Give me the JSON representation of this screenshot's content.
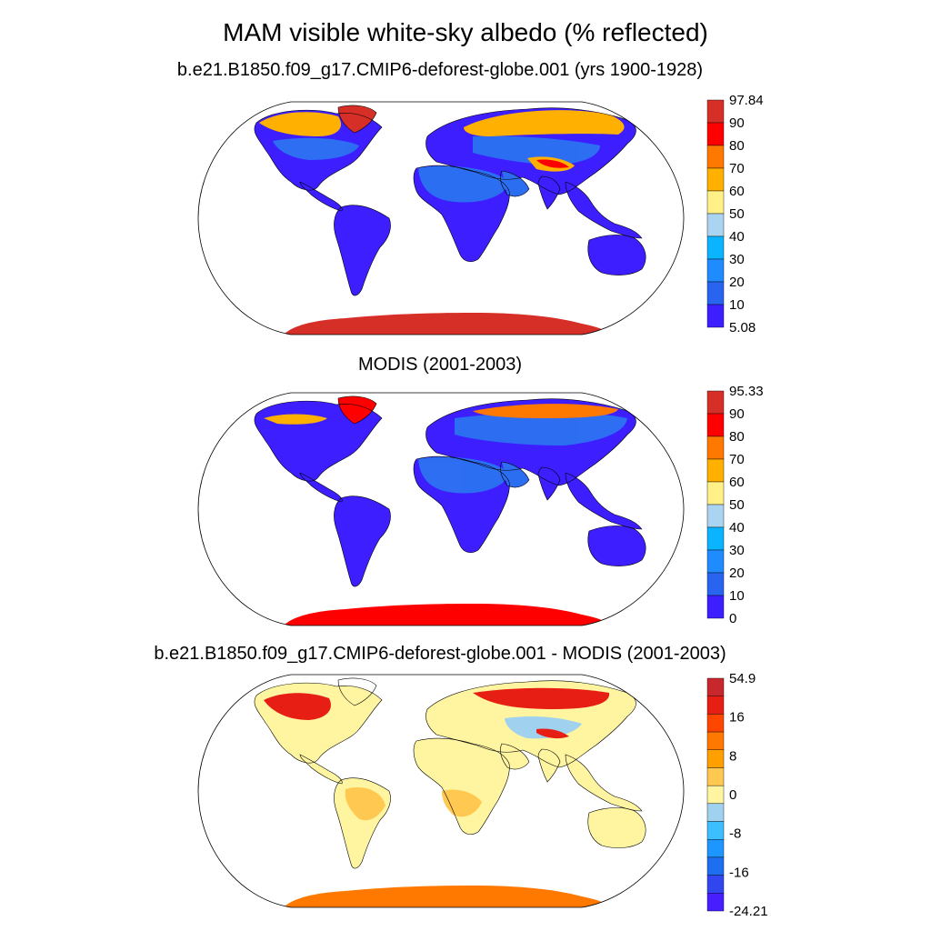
{
  "title": "MAM visible white-sky albedo (% reflected)",
  "panels": [
    {
      "id": "model",
      "subtitle": "b.e21.B1850.f09_g17.CMIP6-deforest-globe.001 (yrs 1900-1928)",
      "kind": "absolute",
      "colorbar": {
        "labels": [
          "97.84",
          "90",
          "80",
          "70",
          "60",
          "50",
          "40",
          "30",
          "20",
          "10",
          "5.08"
        ],
        "colors_top_to_bottom": [
          "#d62f27",
          "#ff0000",
          "#ff7800",
          "#ffb000",
          "#fff087",
          "#aad4f0",
          "#0ab4ff",
          "#1e8cff",
          "#2864f0",
          "#3c1eff"
        ]
      }
    },
    {
      "id": "obs",
      "subtitle": "MODIS (2001-2003)",
      "kind": "absolute",
      "colorbar": {
        "labels": [
          "95.33",
          "90",
          "80",
          "70",
          "60",
          "50",
          "40",
          "30",
          "20",
          "10",
          "0"
        ],
        "colors_top_to_bottom": [
          "#d62f27",
          "#ff0000",
          "#ff7800",
          "#ffb000",
          "#fff087",
          "#aad4f0",
          "#0ab4ff",
          "#1e8cff",
          "#2864f0",
          "#3c1eff"
        ]
      }
    },
    {
      "id": "diff",
      "subtitle": "b.e21.B1850.f09_g17.CMIP6-deforest-globe.001 - MODIS (2001-2003)",
      "kind": "difference",
      "colorbar": {
        "labels": [
          "54.9",
          "",
          "16",
          "",
          "8",
          "",
          "0",
          "",
          "-8",
          "",
          "-16",
          "",
          "-24.21"
        ],
        "colors_top_to_bottom": [
          "#c8282d",
          "#e61e14",
          "#ff4600",
          "#ff7800",
          "#ffa000",
          "#ffc850",
          "#fff5a0",
          "#a0d2f0",
          "#3cbeff",
          "#1e96ff",
          "#1e6ef0",
          "#3246f0",
          "#461eff"
        ]
      }
    }
  ],
  "colors": {
    "land_low": "#3c1eff",
    "snow": "#d62f27",
    "diff_pos": "#fff5a0",
    "diff_high": "#e61e14",
    "diff_neg": "#a0d2f0"
  },
  "chart_data": {
    "type": "map",
    "title": "MAM visible white-sky albedo (% reflected)",
    "projection": "Robinson (global)",
    "panels": [
      {
        "subtitle": "b.e21.B1850.f09_g17.CMIP6-deforest-globe.001 (yrs 1900-1928)",
        "min": 5.08,
        "max": 97.84,
        "levels": [
          10,
          20,
          30,
          40,
          50,
          60,
          70,
          80,
          90
        ]
      },
      {
        "subtitle": "MODIS (2001-2003)",
        "min": 0,
        "max": 95.33,
        "levels": [
          10,
          20,
          30,
          40,
          50,
          60,
          70,
          80,
          90
        ]
      },
      {
        "subtitle": "b.e21.B1850.f09_g17.CMIP6-deforest-globe.001 - MODIS (2001-2003)",
        "min": -24.21,
        "max": 54.9,
        "levels": [
          -16,
          -8,
          0,
          8,
          16
        ]
      }
    ]
  }
}
